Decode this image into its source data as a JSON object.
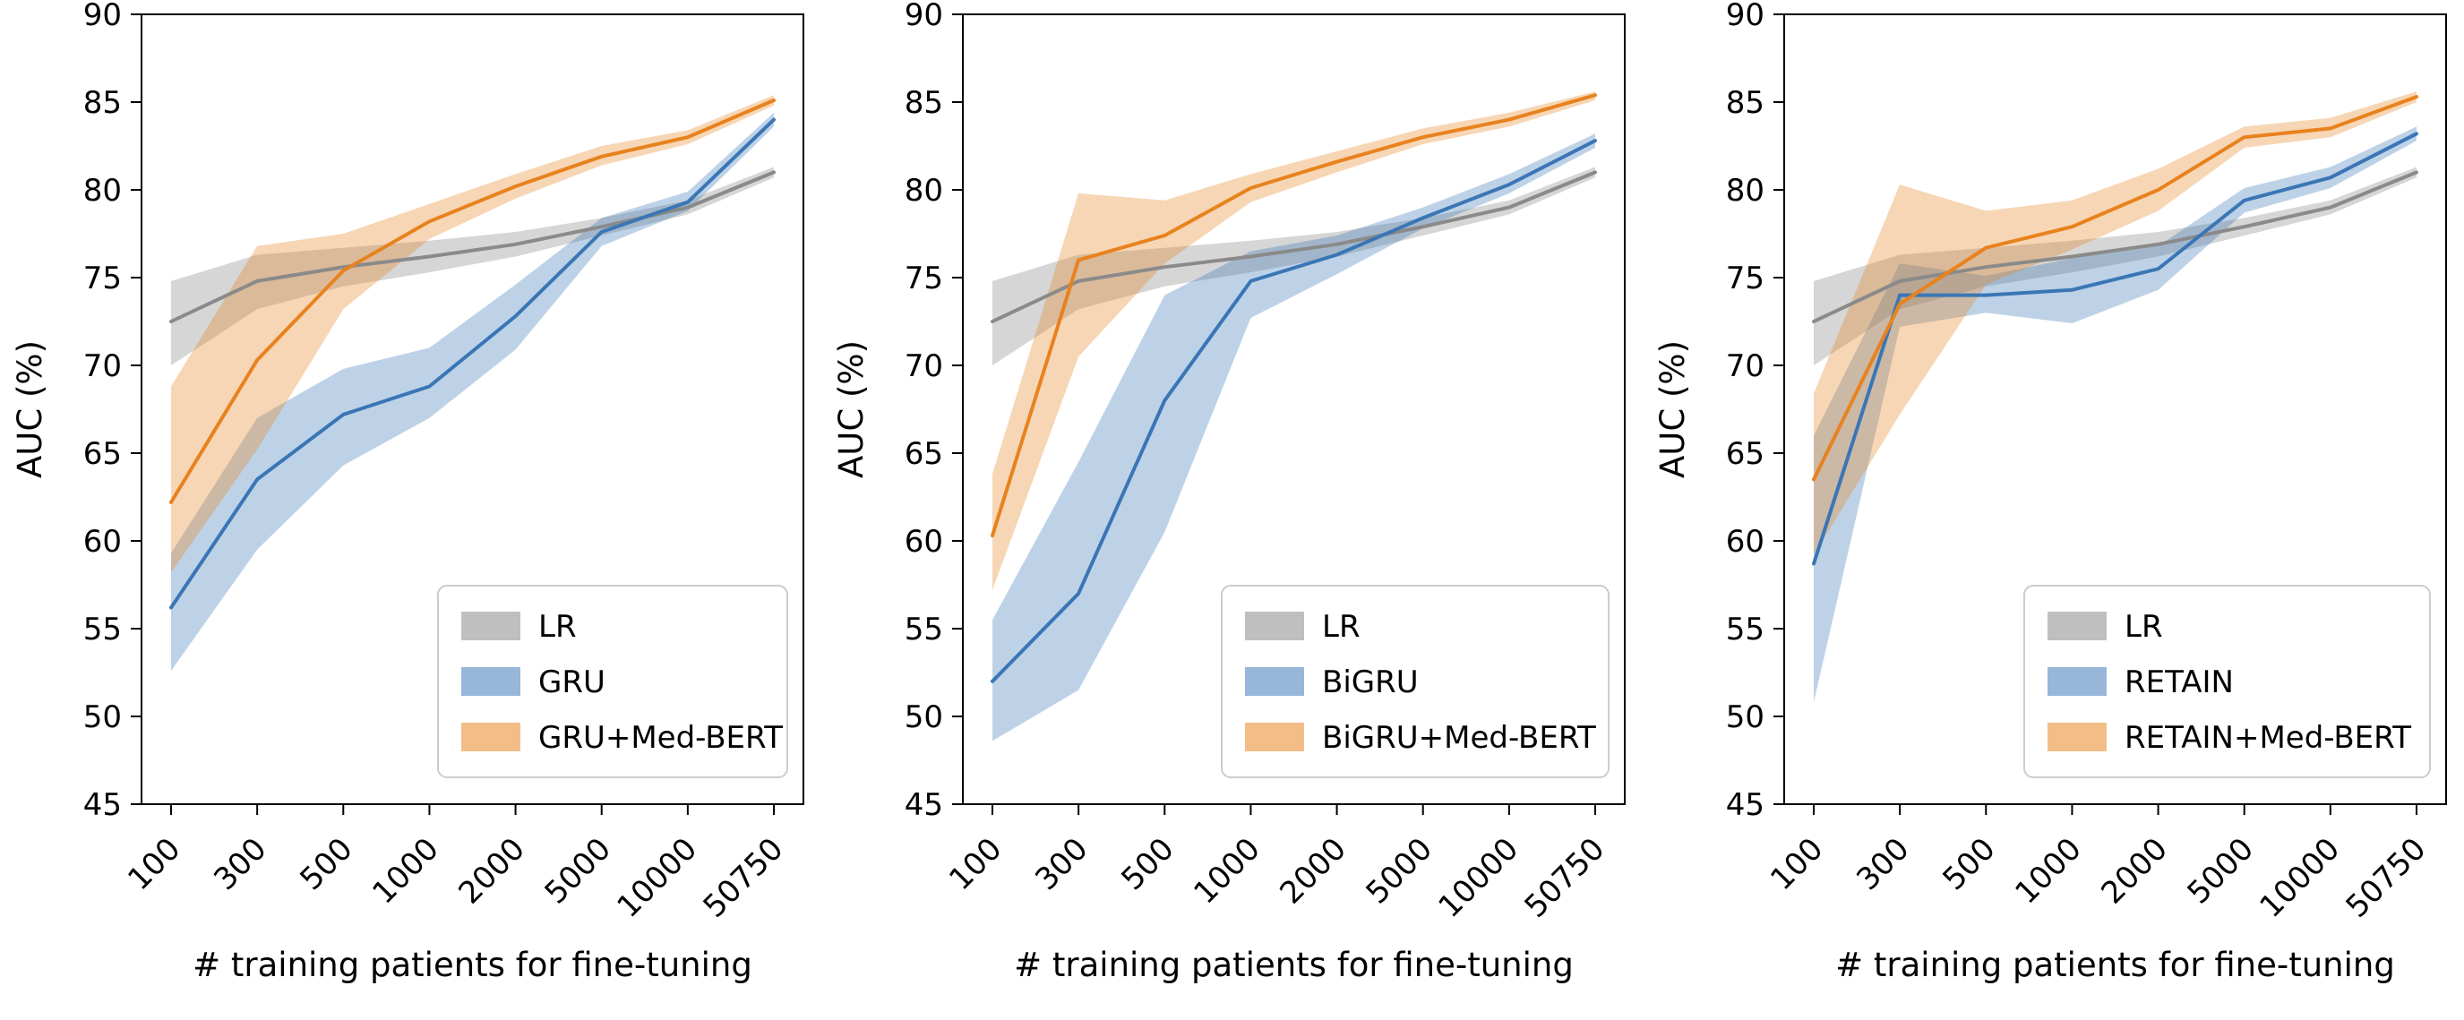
{
  "figure": {
    "background": "#ffffff",
    "ylabel": "AUC (%)",
    "xlabel": "# training patients for fine-tuning",
    "y_ticks": [
      45,
      50,
      55,
      60,
      65,
      70,
      75,
      80,
      85,
      90
    ],
    "x_tick_labels": [
      "100",
      "300",
      "500",
      "1000",
      "2000",
      "5000",
      "10000",
      "50750"
    ],
    "ylim": [
      45,
      90
    ],
    "spine_color": "#000000",
    "legend_border_color": "#cccccc"
  },
  "chart_data": [
    {
      "type": "line",
      "panel": "GRU",
      "xlabel": "# training patients for fine-tuning",
      "ylabel": "AUC (%)",
      "x_tick_labels": [
        "100",
        "300",
        "500",
        "1000",
        "2000",
        "5000",
        "10000",
        "50750"
      ],
      "ylim": [
        45,
        90
      ],
      "legend_position": "lower right",
      "series": [
        {
          "name": "LR",
          "color": "#8a8a8a",
          "band_opacity": 0.35,
          "values": [
            72.5,
            74.8,
            75.6,
            76.2,
            76.9,
            77.9,
            79.0,
            81.0
          ],
          "lower": [
            70.0,
            73.2,
            74.5,
            75.3,
            76.2,
            77.4,
            78.6,
            80.7
          ],
          "upper": [
            74.8,
            76.3,
            76.7,
            77.1,
            77.6,
            78.4,
            79.4,
            81.3
          ]
        },
        {
          "name": "GRU",
          "color": "#3a76b5",
          "band_opacity": 0.33,
          "values": [
            56.2,
            63.5,
            67.2,
            68.8,
            72.8,
            77.6,
            79.3,
            84.0
          ],
          "lower": [
            52.6,
            59.5,
            64.3,
            67.0,
            70.9,
            76.8,
            78.8,
            83.6
          ],
          "upper": [
            59.3,
            67.0,
            69.8,
            71.0,
            74.6,
            78.4,
            79.9,
            84.4
          ]
        },
        {
          "name": "GRU+Med-BERT",
          "color": "#e8821e",
          "band_opacity": 0.33,
          "values": [
            62.2,
            70.3,
            75.4,
            78.2,
            80.2,
            81.9,
            83.0,
            85.1
          ],
          "lower": [
            58.2,
            65.2,
            73.2,
            77.2,
            79.5,
            81.4,
            82.6,
            84.8
          ],
          "upper": [
            68.8,
            76.8,
            77.5,
            79.2,
            80.9,
            82.5,
            83.4,
            85.4
          ]
        }
      ]
    },
    {
      "type": "line",
      "panel": "BiGRU",
      "xlabel": "# training patients for fine-tuning",
      "ylabel": "AUC (%)",
      "x_tick_labels": [
        "100",
        "300",
        "500",
        "1000",
        "2000",
        "5000",
        "10000",
        "50750"
      ],
      "ylim": [
        45,
        90
      ],
      "legend_position": "lower right",
      "series": [
        {
          "name": "LR",
          "color": "#8a8a8a",
          "band_opacity": 0.35,
          "values": [
            72.5,
            74.8,
            75.6,
            76.2,
            76.9,
            77.9,
            79.0,
            81.0
          ],
          "lower": [
            70.0,
            73.2,
            74.5,
            75.3,
            76.2,
            77.4,
            78.6,
            80.7
          ],
          "upper": [
            74.8,
            76.3,
            76.7,
            77.1,
            77.6,
            78.4,
            79.4,
            81.3
          ]
        },
        {
          "name": "BiGRU",
          "color": "#3a76b5",
          "band_opacity": 0.33,
          "values": [
            52.0,
            57.0,
            68.0,
            74.8,
            76.3,
            78.4,
            80.3,
            82.8
          ],
          "lower": [
            48.6,
            51.5,
            60.5,
            72.7,
            75.2,
            77.8,
            79.8,
            82.4
          ],
          "upper": [
            55.5,
            64.5,
            74.0,
            76.5,
            77.4,
            79.0,
            80.9,
            83.2
          ]
        },
        {
          "name": "BiGRU+Med-BERT",
          "color": "#e8821e",
          "band_opacity": 0.33,
          "values": [
            60.3,
            76.0,
            77.4,
            80.1,
            81.6,
            83.0,
            84.0,
            85.4
          ],
          "lower": [
            57.2,
            70.5,
            75.8,
            79.3,
            81.0,
            82.6,
            83.6,
            85.1
          ],
          "upper": [
            63.8,
            79.8,
            79.4,
            80.9,
            82.2,
            83.5,
            84.4,
            85.6
          ]
        }
      ]
    },
    {
      "type": "line",
      "panel": "RETAIN",
      "xlabel": "# training patients for fine-tuning",
      "ylabel": "AUC (%)",
      "x_tick_labels": [
        "100",
        "300",
        "500",
        "1000",
        "2000",
        "5000",
        "10000",
        "50750"
      ],
      "ylim": [
        45,
        90
      ],
      "legend_position": "lower right",
      "series": [
        {
          "name": "LR",
          "color": "#8a8a8a",
          "band_opacity": 0.35,
          "values": [
            72.5,
            74.8,
            75.6,
            76.2,
            76.9,
            77.9,
            79.0,
            81.0
          ],
          "lower": [
            70.0,
            73.2,
            74.5,
            75.3,
            76.2,
            77.4,
            78.6,
            80.7
          ],
          "upper": [
            74.8,
            76.3,
            76.7,
            77.1,
            77.6,
            78.4,
            79.4,
            81.3
          ]
        },
        {
          "name": "RETAIN",
          "color": "#3a76b5",
          "band_opacity": 0.33,
          "values": [
            58.7,
            74.0,
            74.0,
            74.3,
            75.5,
            79.4,
            80.7,
            83.2
          ],
          "lower": [
            50.8,
            72.2,
            73.0,
            72.4,
            74.3,
            78.7,
            80.1,
            82.8
          ],
          "upper": [
            66.0,
            75.8,
            75.1,
            76.1,
            76.8,
            80.1,
            81.3,
            83.6
          ]
        },
        {
          "name": "RETAIN+Med-BERT",
          "color": "#e8821e",
          "band_opacity": 0.33,
          "values": [
            63.5,
            73.5,
            76.7,
            77.9,
            80.0,
            83.0,
            83.5,
            85.3
          ],
          "lower": [
            59.2,
            67.2,
            74.6,
            76.6,
            78.8,
            82.4,
            83.0,
            85.0
          ],
          "upper": [
            68.4,
            80.3,
            78.8,
            79.4,
            81.2,
            83.6,
            84.1,
            85.6
          ]
        }
      ]
    }
  ]
}
